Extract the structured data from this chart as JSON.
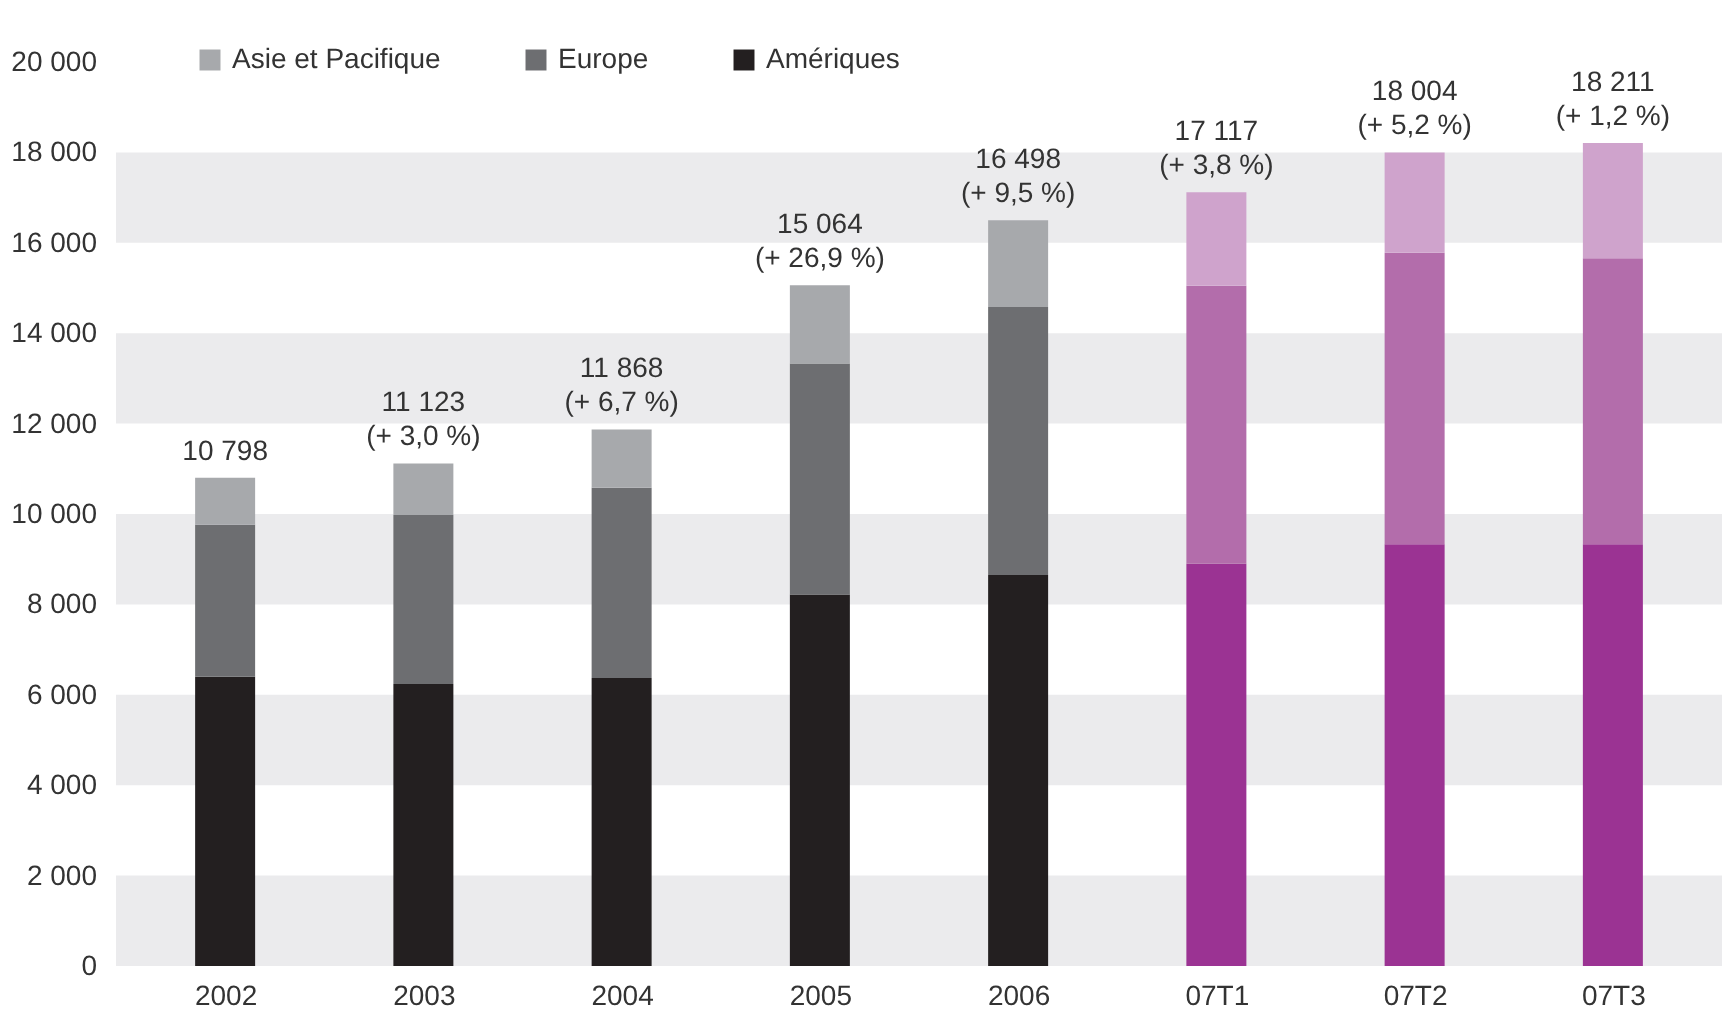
{
  "chart_data": {
    "type": "bar",
    "stacked": true,
    "categories": [
      "2002",
      "2003",
      "2004",
      "2005",
      "2006",
      "07T1",
      "07T2",
      "07T3"
    ],
    "series": [
      {
        "name": "Amériques",
        "colors": [
          "#231f20",
          "#231f20",
          "#231f20",
          "#231f20",
          "#231f20",
          "#9b3393",
          "#9b3393",
          "#9b3393"
        ],
        "values": [
          6400,
          6240,
          6370,
          8220,
          8650,
          8900,
          9330,
          9330
        ]
      },
      {
        "name": "Europe",
        "colors": [
          "#6d6e71",
          "#6d6e71",
          "#6d6e71",
          "#6d6e71",
          "#6d6e71",
          "#b36dab",
          "#b36dab",
          "#b36dab"
        ],
        "values": [
          3360,
          3740,
          4210,
          5110,
          5930,
          6150,
          6450,
          6330
        ]
      },
      {
        "name": "Asie et Pacifique",
        "colors": [
          "#a7a9ac",
          "#a7a9ac",
          "#a7a9ac",
          "#a7a9ac",
          "#a7a9ac",
          "#cfa3cc",
          "#cfa3cc",
          "#cfa3cc"
        ],
        "values": [
          1040,
          1140,
          1290,
          1730,
          1920,
          2070,
          2220,
          2550
        ]
      }
    ],
    "totals": [
      "10 798",
      "11 123\n(+ 3,0 %)",
      "11 868\n(+ 6,7 %)",
      "15 064\n(+ 26,9 %)",
      "16 498\n(+ 9,5 %)",
      "17 117\n(+ 3,8 %)",
      "18 004\n(+ 5,2 %)",
      "18 211\n(+ 1,2 %)"
    ],
    "ylim": [
      0,
      20000
    ],
    "yticks": [
      {
        "value": 0,
        "label": "0"
      },
      {
        "value": 2000,
        "label": "2 000"
      },
      {
        "value": 4000,
        "label": "4 000"
      },
      {
        "value": 6000,
        "label": "6 000"
      },
      {
        "value": 8000,
        "label": "8 000"
      },
      {
        "value": 10000,
        "label": "10 000"
      },
      {
        "value": 12000,
        "label": "12 000"
      },
      {
        "value": 14000,
        "label": "14 000"
      },
      {
        "value": 16000,
        "label": "16 000"
      },
      {
        "value": 18000,
        "label": "18 000"
      },
      {
        "value": 20000,
        "label": "20 000"
      }
    ],
    "bands": [
      {
        "axis": "y",
        "from": 0,
        "to": 2000,
        "color": "#ebebed"
      },
      {
        "axis": "y",
        "from": 4000,
        "to": 6000,
        "color": "#ebebed"
      },
      {
        "axis": "y",
        "from": 8000,
        "to": 10000,
        "color": "#ebebed"
      },
      {
        "axis": "y",
        "from": 12000,
        "to": 14000,
        "color": "#ebebed"
      },
      {
        "axis": "y",
        "from": 16000,
        "to": 18000,
        "color": "#ebebed"
      }
    ],
    "legend": "top left"
  }
}
